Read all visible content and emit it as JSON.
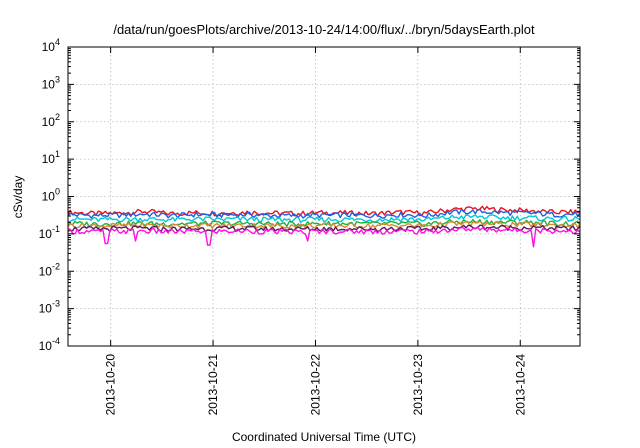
{
  "chart_data": {
    "type": "line",
    "title": "/data/run/goesPlots/archive/2013-10-24/14:00/flux/../bryn/5daysEarth.plot",
    "xlabel": "Coordinated Universal Time (UTC)",
    "ylabel": "cSv/day",
    "yscale": "log",
    "ylim": [
      0.0001,
      10000
    ],
    "xlim": [
      "2013-10-19T14:00",
      "2013-10-24T14:00"
    ],
    "y_ticks": [
      {
        "base": "10",
        "exp": "-4",
        "value": 0.0001
      },
      {
        "base": "10",
        "exp": "-3",
        "value": 0.001
      },
      {
        "base": "10",
        "exp": "-2",
        "value": 0.01
      },
      {
        "base": "10",
        "exp": "-1",
        "value": 0.1
      },
      {
        "base": "10",
        "exp": "0",
        "value": 1
      },
      {
        "base": "10",
        "exp": "1",
        "value": 10
      },
      {
        "base": "10",
        "exp": "2",
        "value": 100
      },
      {
        "base": "10",
        "exp": "3",
        "value": 1000
      },
      {
        "base": "10",
        "exp": "4",
        "value": 10000
      }
    ],
    "x_ticks": [
      {
        "label": "2013-10-20",
        "value": "2013-10-20T00:00"
      },
      {
        "label": "2013-10-21",
        "value": "2013-10-21T00:00"
      },
      {
        "label": "2013-10-22",
        "value": "2013-10-22T00:00"
      },
      {
        "label": "2013-10-23",
        "value": "2013-10-23T00:00"
      },
      {
        "label": "2013-10-24",
        "value": "2013-10-24T00:00"
      }
    ],
    "grid": true,
    "x": [
      "2013-10-19T14:00",
      "2013-10-19T20:00",
      "2013-10-20T02:00",
      "2013-10-20T08:00",
      "2013-10-20T14:00",
      "2013-10-20T20:00",
      "2013-10-21T02:00",
      "2013-10-21T08:00",
      "2013-10-21T14:00",
      "2013-10-21T20:00",
      "2013-10-22T02:00",
      "2013-10-22T08:00",
      "2013-10-22T14:00",
      "2013-10-22T20:00",
      "2013-10-23T02:00",
      "2013-10-23T08:00",
      "2013-10-23T14:00",
      "2013-10-23T20:00",
      "2013-10-24T02:00",
      "2013-10-24T08:00",
      "2013-10-24T14:00"
    ],
    "series": [
      {
        "color": "#e8141c",
        "values": [
          0.38,
          0.35,
          0.36,
          0.4,
          0.35,
          0.37,
          0.36,
          0.38,
          0.36,
          0.35,
          0.37,
          0.36,
          0.35,
          0.38,
          0.36,
          0.45,
          0.48,
          0.44,
          0.42,
          0.38,
          0.39
        ]
      },
      {
        "color": "#1f5fe6",
        "values": [
          0.33,
          0.31,
          0.32,
          0.34,
          0.31,
          0.33,
          0.32,
          0.33,
          0.31,
          0.31,
          0.32,
          0.32,
          0.31,
          0.33,
          0.31,
          0.38,
          0.4,
          0.37,
          0.36,
          0.33,
          0.34
        ]
      },
      {
        "color": "#00c8d0",
        "values": [
          0.25,
          0.24,
          0.245,
          0.25,
          0.24,
          0.25,
          0.245,
          0.25,
          0.24,
          0.24,
          0.245,
          0.245,
          0.24,
          0.25,
          0.24,
          0.28,
          0.29,
          0.27,
          0.27,
          0.25,
          0.25
        ]
      },
      {
        "color": "#20b040",
        "values": [
          0.19,
          0.185,
          0.19,
          0.19,
          0.185,
          0.19,
          0.19,
          0.19,
          0.185,
          0.185,
          0.19,
          0.19,
          0.185,
          0.19,
          0.185,
          0.21,
          0.215,
          0.205,
          0.205,
          0.19,
          0.19
        ]
      },
      {
        "color": "#d88a30",
        "values": [
          0.17,
          0.165,
          0.168,
          0.17,
          0.165,
          0.168,
          0.168,
          0.17,
          0.165,
          0.165,
          0.168,
          0.168,
          0.165,
          0.17,
          0.165,
          0.185,
          0.19,
          0.18,
          0.18,
          0.17,
          0.17
        ]
      },
      {
        "color": "#5a1a5a",
        "values": [
          0.14,
          0.135,
          0.138,
          0.14,
          0.135,
          0.138,
          0.138,
          0.14,
          0.135,
          0.135,
          0.138,
          0.138,
          0.135,
          0.14,
          0.135,
          0.15,
          0.155,
          0.148,
          0.148,
          0.14,
          0.14
        ]
      },
      {
        "color": "#ff10e0",
        "values": [
          0.12,
          0.115,
          0.118,
          0.12,
          0.115,
          0.118,
          0.118,
          0.12,
          0.115,
          0.115,
          0.118,
          0.118,
          0.115,
          0.12,
          0.115,
          0.13,
          0.135,
          0.128,
          0.128,
          0.12,
          0.12
        ]
      }
    ],
    "dips": [
      {
        "x": "2013-10-19T23:00",
        "value": 0.055
      },
      {
        "x": "2013-10-20T06:00",
        "value": 0.065
      },
      {
        "x": "2013-10-20T23:00",
        "value": 0.05
      },
      {
        "x": "2013-10-21T22:00",
        "value": 0.065
      },
      {
        "x": "2013-10-24T03:00",
        "value": 0.045
      }
    ]
  }
}
